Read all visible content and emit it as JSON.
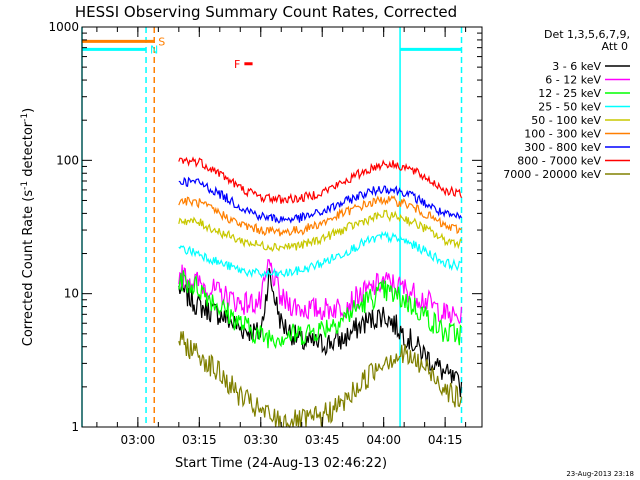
{
  "chart_data": {
    "type": "line",
    "title": "HESSI Observing Summary Count Rates, Corrected",
    "xlabel": "Start Time (24-Aug-13 02:46:22)",
    "ylabel": "Corrected Count Rate (s⁻¹ detector⁻¹)",
    "ylabel_parts": {
      "base": "Corrected Count Rate (s",
      "exp1": "-1",
      "mid": " detector",
      "exp2": "-1",
      "end": ")"
    },
    "yscale": "log",
    "ylim": [
      1,
      1000
    ],
    "yticks": [
      {
        "value": 1,
        "label": "1"
      },
      {
        "value": 10,
        "label": "10"
      },
      {
        "value": 100,
        "label": "100"
      },
      {
        "value": 1000,
        "label": "1000"
      }
    ],
    "xlim": [
      "02:46:22",
      "04:24:00"
    ],
    "xticks": [
      "03:00",
      "03:15",
      "03:30",
      "03:45",
      "04:00",
      "04:15"
    ],
    "legend": {
      "position": "right",
      "header": [
        "Det 1,3,5,6,7,9,",
        "Att 0"
      ],
      "entries": [
        {
          "label": "3 - 6 keV",
          "color": "#000000"
        },
        {
          "label": "6 - 12 keV",
          "color": "#ff00ff"
        },
        {
          "label": "12 - 25 keV",
          "color": "#00ff00"
        },
        {
          "label": "25 - 50 keV",
          "color": "#00ffff"
        },
        {
          "label": "50 - 100 keV",
          "color": "#c8c800"
        },
        {
          "label": "100 - 300 keV",
          "color": "#ff7f00"
        },
        {
          "label": "300 - 800 keV",
          "color": "#0000ff"
        },
        {
          "label": "800 - 7000 keV",
          "color": "#ff0000"
        },
        {
          "label": "7000 - 20000 keV",
          "color": "#808000"
        }
      ]
    },
    "series": [
      {
        "name": "3 - 6 keV",
        "color": "#000000",
        "x": [
          "03:10",
          "03:15",
          "03:20",
          "03:25",
          "03:30",
          "03:32",
          "03:35",
          "03:40",
          "03:45",
          "03:50",
          "03:55",
          "04:00",
          "04:05",
          "04:10",
          "04:15",
          "04:19"
        ],
        "values": [
          11,
          8,
          7,
          5.5,
          5,
          14,
          6,
          4.3,
          4.2,
          4.5,
          6,
          7,
          5,
          3.5,
          2.5,
          2
        ]
      },
      {
        "name": "6 - 12 keV",
        "color": "#ff00ff",
        "x": [
          "03:10",
          "03:15",
          "03:20",
          "03:25",
          "03:30",
          "03:32",
          "03:35",
          "03:40",
          "03:45",
          "03:50",
          "03:55",
          "04:00",
          "04:05",
          "04:10",
          "04:15",
          "04:19"
        ],
        "values": [
          14,
          12,
          10,
          8.5,
          8.5,
          17,
          9,
          7.7,
          7.6,
          8,
          10,
          12.5,
          11,
          9,
          7,
          6.5
        ]
      },
      {
        "name": "12 - 25 keV",
        "color": "#00ff00",
        "x": [
          "03:10",
          "03:15",
          "03:20",
          "03:25",
          "03:30",
          "03:35",
          "03:40",
          "03:45",
          "03:50",
          "03:55",
          "04:00",
          "04:05",
          "04:10",
          "04:15",
          "04:19"
        ],
        "values": [
          13,
          11,
          8,
          6,
          4.8,
          4.8,
          5,
          5.5,
          6.5,
          8.5,
          10.5,
          9,
          7,
          5,
          5
        ]
      },
      {
        "name": "25 - 50 keV",
        "color": "#00ffff",
        "x": [
          "03:10",
          "03:15",
          "03:20",
          "03:25",
          "03:30",
          "03:35",
          "03:40",
          "03:45",
          "03:50",
          "03:55",
          "04:00",
          "04:05",
          "04:10",
          "04:15",
          "04:19"
        ],
        "values": [
          22,
          20,
          17,
          15,
          14,
          14,
          15,
          17,
          20,
          24,
          27,
          25,
          21,
          17,
          16
        ]
      },
      {
        "name": "50 - 100 keV",
        "color": "#c8c800",
        "x": [
          "03:10",
          "03:15",
          "03:20",
          "03:25",
          "03:30",
          "03:35",
          "03:40",
          "03:45",
          "03:50",
          "03:55",
          "04:00",
          "04:05",
          "04:10",
          "04:15",
          "04:19"
        ],
        "values": [
          36,
          34,
          29,
          25,
          23,
          22.5,
          23,
          26,
          30,
          35,
          39,
          37,
          31,
          25,
          24
        ]
      },
      {
        "name": "100 - 300 keV",
        "color": "#ff7f00",
        "x": [
          "03:10",
          "03:15",
          "03:20",
          "03:25",
          "03:30",
          "03:35",
          "03:40",
          "03:45",
          "03:50",
          "03:55",
          "04:00",
          "04:05",
          "04:10",
          "04:15",
          "04:19"
        ],
        "values": [
          50,
          48,
          40,
          33,
          30,
          29,
          30,
          34,
          40,
          46,
          51,
          48,
          40,
          32,
          30
        ]
      },
      {
        "name": "300 - 800 keV",
        "color": "#0000ff",
        "x": [
          "03:10",
          "03:15",
          "03:20",
          "03:25",
          "03:30",
          "03:35",
          "03:40",
          "03:45",
          "03:50",
          "03:55",
          "04:00",
          "04:05",
          "04:10",
          "04:15",
          "04:19"
        ],
        "values": [
          70,
          68,
          56,
          45,
          38,
          36,
          37,
          41,
          48,
          56,
          62,
          58,
          48,
          39,
          37
        ]
      },
      {
        "name": "800 - 7000 keV",
        "color": "#ff0000",
        "x": [
          "03:10",
          "03:15",
          "03:20",
          "03:25",
          "03:30",
          "03:35",
          "03:40",
          "03:45",
          "03:50",
          "03:55",
          "04:00",
          "04:05",
          "04:10",
          "04:15",
          "04:19"
        ],
        "values": [
          100,
          98,
          80,
          62,
          53,
          51,
          52,
          58,
          68,
          82,
          95,
          90,
          75,
          60,
          55
        ]
      },
      {
        "name": "7000 - 20000 keV",
        "color": "#808000",
        "x": [
          "03:10",
          "03:15",
          "03:20",
          "03:25",
          "03:30",
          "03:35",
          "03:40",
          "03:45",
          "03:50",
          "03:55",
          "04:00",
          "04:05",
          "04:10",
          "04:15",
          "04:19"
        ],
        "values": [
          4.5,
          3.5,
          2.5,
          1.7,
          1.3,
          1.1,
          1.1,
          1.2,
          1.5,
          2.2,
          3.2,
          3.5,
          2.8,
          2,
          1.5
        ]
      }
    ],
    "annotations": [
      {
        "label": "S",
        "color": "#ff7f00",
        "x_start": "02:46:22",
        "x_end": "03:04",
        "y": 780
      },
      {
        "label": "N",
        "color": "#00ffff",
        "x_start": "02:46:22",
        "x_end": "03:02",
        "y": 680
      },
      {
        "label": "",
        "color": "#00ffff",
        "x_start": "04:04",
        "x_end": "04:19",
        "y": 680
      },
      {
        "label": "F",
        "color": "#ff0000",
        "x_start": "03:26",
        "x_end": "03:28",
        "y": 530
      }
    ],
    "vertical_lines": [
      {
        "x": "02:46:22",
        "color": "#00ffff",
        "style": "solid"
      },
      {
        "x": "03:02",
        "color": "#00ffff",
        "style": "dashed"
      },
      {
        "x": "03:04",
        "color": "#ff7f00",
        "style": "dashed"
      },
      {
        "x": "04:04",
        "color": "#00ffff",
        "style": "solid"
      },
      {
        "x": "04:19",
        "color": "#00ffff",
        "style": "dashed"
      }
    ],
    "timestamp": "23-Aug-2013 23:18"
  }
}
